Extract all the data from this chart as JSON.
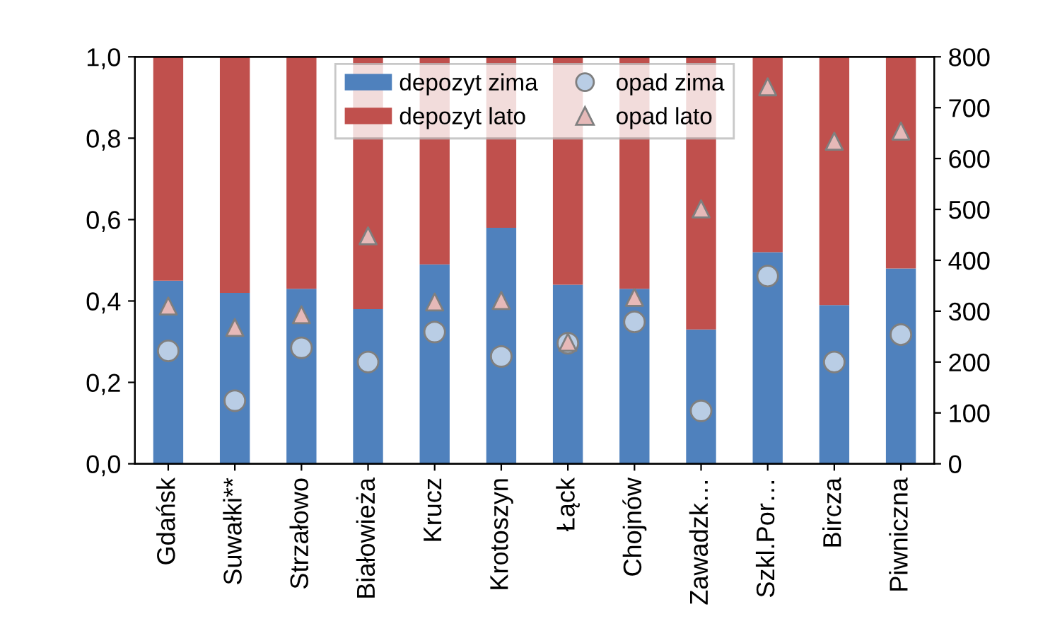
{
  "chart_data": {
    "type": "bar",
    "stacked": true,
    "categories": [
      "Gdańsk",
      "Suwałki**",
      "Strzałowo",
      "Białowieża",
      "Krucz",
      "Krotoszyn",
      "Łąck",
      "Chojnów",
      "Zawadzk…",
      "Szkl.Por…",
      "Bircza",
      "Piwniczna"
    ],
    "series": [
      {
        "name": "depozyt zima",
        "color": "#4f81bd",
        "values": [
          0.45,
          0.42,
          0.43,
          0.38,
          0.49,
          0.58,
          0.44,
          0.43,
          0.33,
          0.52,
          0.39,
          0.48
        ]
      },
      {
        "name": "depozyt lato",
        "color": "#c0504d",
        "values": [
          0.55,
          0.58,
          0.57,
          0.62,
          0.51,
          0.42,
          0.56,
          0.57,
          0.67,
          0.48,
          0.61,
          0.52
        ]
      },
      {
        "name": "opad zima",
        "type": "scatter",
        "axis": "y2",
        "marker": "circle",
        "color": "#b9cde5",
        "values": [
          222,
          124,
          228,
          200,
          259,
          211,
          237,
          279,
          104,
          369,
          200,
          254
        ]
      },
      {
        "name": "opad lato",
        "type": "scatter",
        "axis": "y2",
        "marker": "triangle",
        "color": "#e6b9b8",
        "values": [
          310,
          268,
          293,
          448,
          318,
          321,
          239,
          327,
          501,
          741,
          634,
          654
        ]
      }
    ],
    "ylim": [
      0,
      1
    ],
    "yticks": [
      {
        "value": 0,
        "label": "0,0"
      },
      {
        "value": 0.2,
        "label": "0,2"
      },
      {
        "value": 0.4,
        "label": "0,4"
      },
      {
        "value": 0.6,
        "label": "0,6"
      },
      {
        "value": 0.8,
        "label": "0,8"
      },
      {
        "value": 1,
        "label": "1,0"
      }
    ],
    "y2lim": [
      0,
      800
    ],
    "y2ticks": [
      0,
      100,
      200,
      300,
      400,
      500,
      600,
      700,
      800
    ],
    "legend": "top",
    "grid": false
  }
}
